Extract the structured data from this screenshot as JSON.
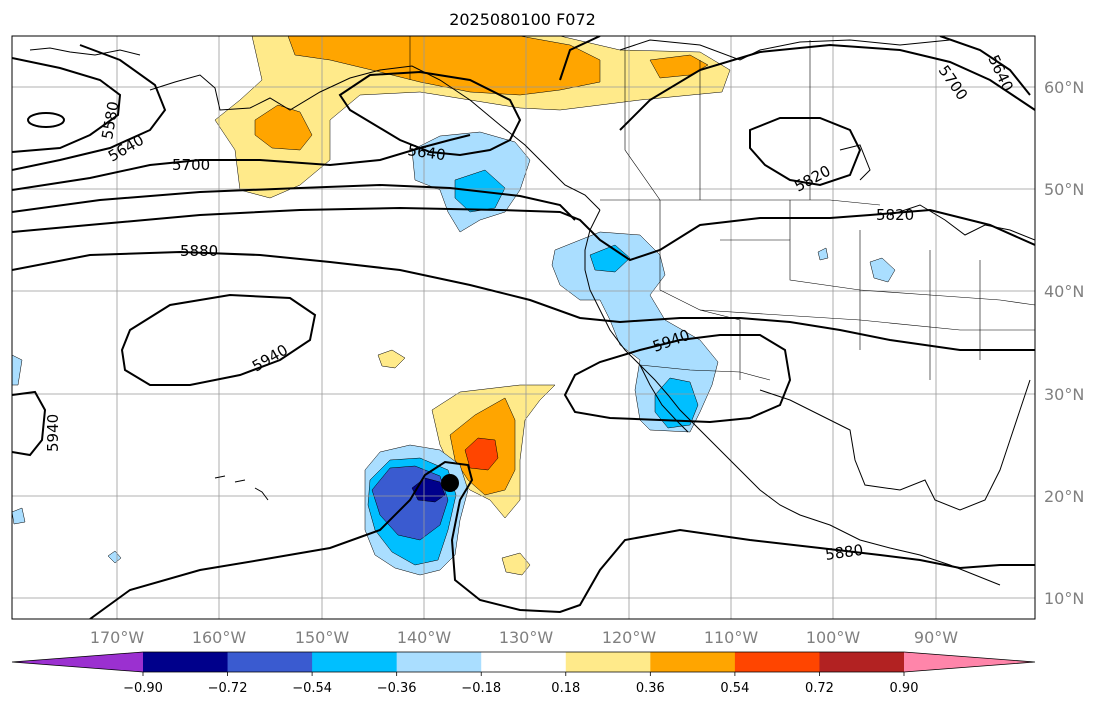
{
  "title": "2025080100 F072",
  "lon_labels": [
    "170°W",
    "160°W",
    "150°W",
    "140°W",
    "130°W",
    "120°W",
    "110°W",
    "100°W",
    "90°W"
  ],
  "lat_labels": [
    "60°N",
    "50°N",
    "40°N",
    "30°N",
    "20°N",
    "10°N"
  ],
  "colorbar": {
    "colors": [
      "#9b30d0",
      "#00008b",
      "#3a5bd0",
      "#00bfff",
      "#aadeff",
      "#ffffff",
      "#ffea8a",
      "#ffa500",
      "#ff4500",
      "#b22222",
      "#ff85aa"
    ],
    "tick_labels": [
      "−0.90",
      "−0.72",
      "−0.54",
      "−0.36",
      "−0.18",
      "0.18",
      "0.36",
      "0.54",
      "0.72",
      "0.90"
    ]
  },
  "contour_labels": [
    "5580",
    "5640",
    "5700",
    "5640",
    "5700",
    "5640",
    "5820",
    "5820",
    "5880",
    "5940",
    "5940",
    "5940",
    "5880"
  ],
  "marker": {
    "name": "storm-center",
    "color": "#000000"
  }
}
